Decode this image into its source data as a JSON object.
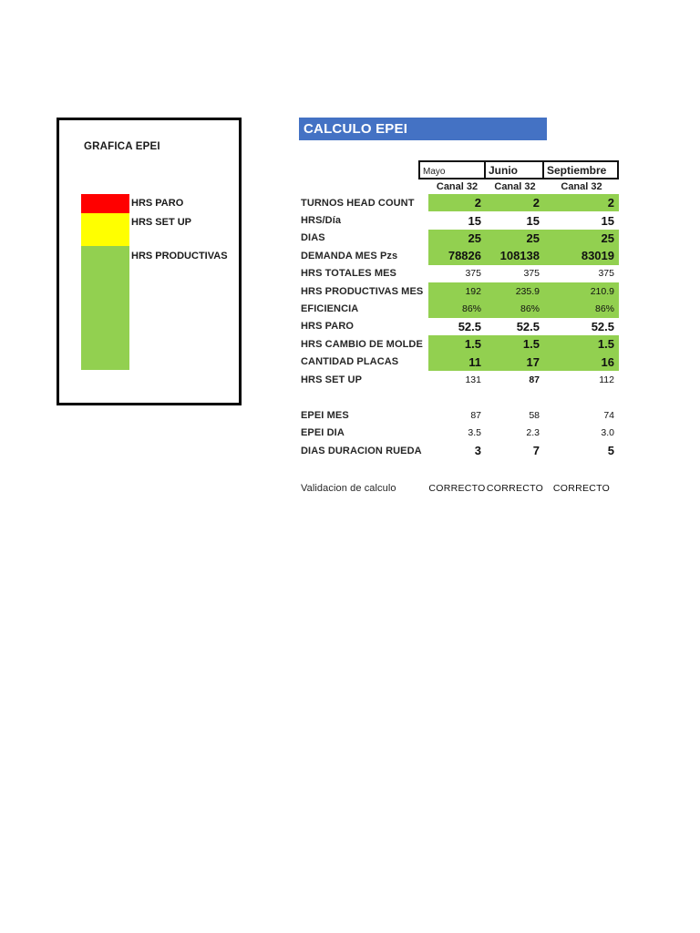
{
  "header": {
    "title": "CALCULO EPEI",
    "banner_color": "#4472C4"
  },
  "legend": {
    "title": "GRAFICA EPEI",
    "items": [
      {
        "label": "HRS PARO",
        "color": "#FF0000"
      },
      {
        "label": "HRS SET UP",
        "color": "#FFFF00"
      },
      {
        "label": "HRS PRODUCTIVAS",
        "color": "#92D050"
      }
    ]
  },
  "columns": [
    {
      "month": "Mayo",
      "channel": "Canal 32"
    },
    {
      "month": "Junio",
      "channel": "Canal 32"
    },
    {
      "month": "Septiembre",
      "channel": "Canal 32"
    }
  ],
  "rows": [
    {
      "label": "TURNOS HEAD COUNT",
      "values": [
        "2",
        "2",
        "2"
      ]
    },
    {
      "label": "HRS/Día",
      "values": [
        "15",
        "15",
        "15"
      ]
    },
    {
      "label": "DIAS",
      "values": [
        "25",
        "25",
        "25"
      ]
    },
    {
      "label": "DEMANDA MES Pzs",
      "values": [
        "78826",
        "108138",
        "83019"
      ]
    },
    {
      "label": "HRS TOTALES MES",
      "values": [
        "375",
        "375",
        "375"
      ]
    },
    {
      "label": "HRS PRODUCTIVAS MES",
      "values": [
        "192",
        "235.9",
        "210.9"
      ]
    },
    {
      "label": "EFICIENCIA",
      "values": [
        "86%",
        "86%",
        "86%"
      ]
    },
    {
      "label": "HRS PARO",
      "values": [
        "52.5",
        "52.5",
        "52.5"
      ]
    },
    {
      "label": "HRS CAMBIO DE MOLDE",
      "values": [
        "1.5",
        "1.5",
        "1.5"
      ]
    },
    {
      "label": "CANTIDAD PLACAS",
      "values": [
        "11",
        "17",
        "16"
      ]
    },
    {
      "label": "HRS SET UP",
      "values": [
        "131",
        "87",
        "112"
      ]
    },
    {
      "label": "EPEI MES",
      "values": [
        "87",
        "58",
        "74"
      ]
    },
    {
      "label": "EPEI DIA",
      "values": [
        "3.5",
        "2.3",
        "3.0"
      ]
    },
    {
      "label": "DIAS DURACION RUEDA",
      "values": [
        "3",
        "7",
        "5"
      ]
    }
  ],
  "validation": {
    "label": "Validacion de calculo",
    "values": [
      "CORRECTO",
      "CORRECTO",
      "CORRECTO"
    ]
  },
  "colors": {
    "highlight_green": "#92D050",
    "banner_blue": "#4472C4",
    "paro_red": "#FF0000",
    "setup_yellow": "#FFFF00"
  }
}
